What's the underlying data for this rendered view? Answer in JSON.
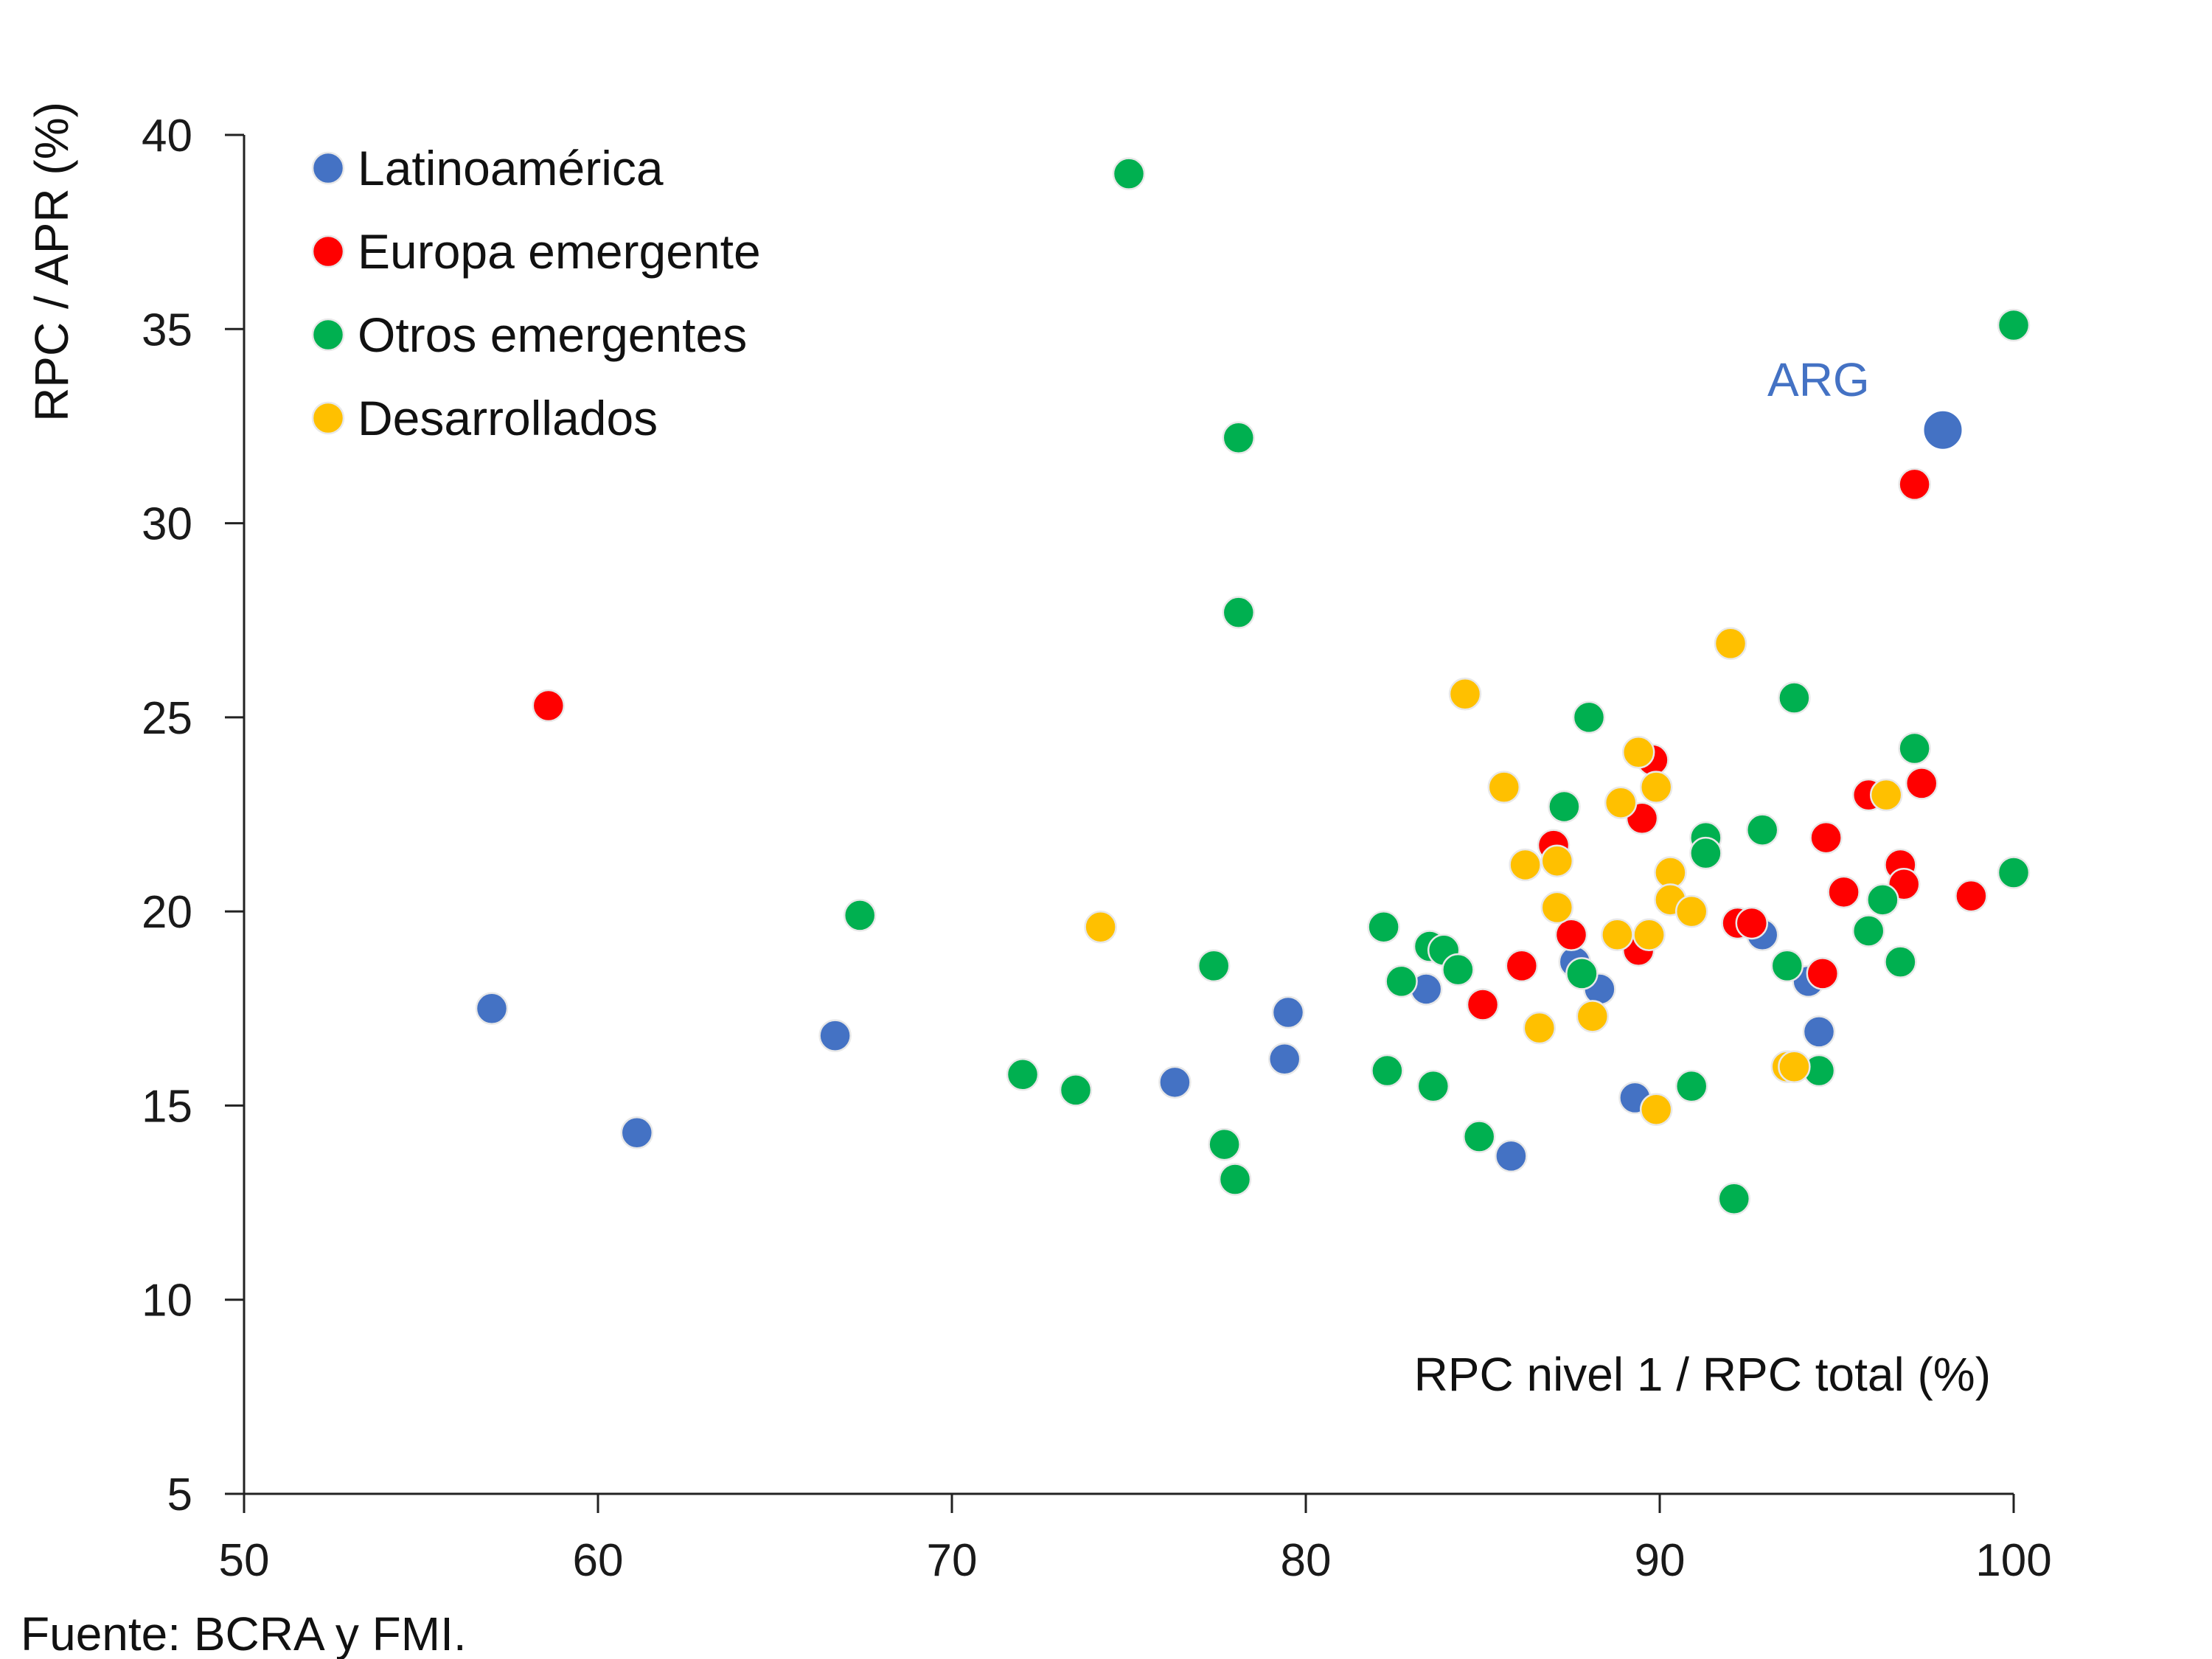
{
  "chart_data": {
    "type": "scatter",
    "ylabel": "RPC / APR (%)",
    "xlabel": "RPC nivel 1 / RPC total (%)",
    "xlim": [
      50,
      100
    ],
    "ylim": [
      5,
      40
    ],
    "xticks": [
      "50",
      "60",
      "70",
      "80",
      "90",
      "100"
    ],
    "yticks": [
      "5",
      "10",
      "15",
      "20",
      "25",
      "30",
      "35",
      "40"
    ],
    "grid": false,
    "legend_position": "top-left",
    "source": "Fuente: BCRA y FMI.",
    "series": [
      {
        "name": "Latinoamérica",
        "color": "#4472C4",
        "points": [
          [
            57.0,
            17.5
          ],
          [
            61.1,
            14.3
          ],
          [
            66.7,
            16.8
          ],
          [
            76.3,
            15.6
          ],
          [
            79.5,
            17.4
          ],
          [
            79.4,
            16.2
          ],
          [
            83.4,
            18.0
          ],
          [
            85.8,
            13.7
          ],
          [
            87.6,
            18.7
          ],
          [
            88.3,
            18.0
          ],
          [
            89.3,
            15.2
          ],
          [
            92.9,
            19.4
          ],
          [
            94.2,
            18.2
          ],
          [
            94.5,
            16.9
          ]
        ]
      },
      {
        "name": "Europa emergente",
        "color": "#FF0000",
        "points": [
          [
            58.6,
            25.3
          ],
          [
            85.0,
            17.6
          ],
          [
            86.1,
            18.6
          ],
          [
            87.0,
            21.7
          ],
          [
            87.5,
            19.4
          ],
          [
            89.4,
            19.0
          ],
          [
            89.5,
            22.4
          ],
          [
            89.8,
            23.9
          ],
          [
            92.2,
            19.7
          ],
          [
            92.6,
            19.7
          ],
          [
            94.6,
            18.4
          ],
          [
            94.7,
            21.9
          ],
          [
            95.2,
            20.5
          ],
          [
            95.9,
            23.0
          ],
          [
            96.8,
            21.2
          ],
          [
            96.9,
            20.7
          ],
          [
            97.2,
            31.0
          ],
          [
            97.4,
            23.3
          ],
          [
            98.8,
            20.4
          ]
        ]
      },
      {
        "name": "Otros emergentes",
        "color": "#00B050",
        "points": [
          [
            67.4,
            19.9
          ],
          [
            72.0,
            15.8
          ],
          [
            73.5,
            15.4
          ],
          [
            75.0,
            39.0
          ],
          [
            77.4,
            18.6
          ],
          [
            77.7,
            14.0
          ],
          [
            78.0,
            13.1
          ],
          [
            78.1,
            27.7
          ],
          [
            78.1,
            32.2
          ],
          [
            82.2,
            19.6
          ],
          [
            82.3,
            15.9
          ],
          [
            82.7,
            18.2
          ],
          [
            83.5,
            19.1
          ],
          [
            83.6,
            15.5
          ],
          [
            83.9,
            19.0
          ],
          [
            84.3,
            18.5
          ],
          [
            84.9,
            14.2
          ],
          [
            87.3,
            22.7
          ],
          [
            87.8,
            18.4
          ],
          [
            88.0,
            25.0
          ],
          [
            90.9,
            15.5
          ],
          [
            91.3,
            21.9
          ],
          [
            91.3,
            21.5
          ],
          [
            92.1,
            12.6
          ],
          [
            92.9,
            22.1
          ],
          [
            93.6,
            18.6
          ],
          [
            93.8,
            25.5
          ],
          [
            94.5,
            15.9
          ],
          [
            95.9,
            19.5
          ],
          [
            96.3,
            20.3
          ],
          [
            96.8,
            18.7
          ],
          [
            97.2,
            24.2
          ],
          [
            100.0,
            21.0
          ],
          [
            100.0,
            35.1
          ]
        ]
      },
      {
        "name": "Desarrollados",
        "color": "#FFC000",
        "points": [
          [
            74.2,
            19.6
          ],
          [
            84.5,
            25.6
          ],
          [
            85.6,
            23.2
          ],
          [
            86.2,
            21.2
          ],
          [
            86.6,
            17.0
          ],
          [
            87.1,
            21.3
          ],
          [
            87.1,
            20.1
          ],
          [
            88.1,
            17.3
          ],
          [
            88.8,
            19.4
          ],
          [
            88.9,
            22.8
          ],
          [
            89.4,
            24.1
          ],
          [
            89.7,
            19.4
          ],
          [
            89.9,
            23.2
          ],
          [
            89.9,
            14.9
          ],
          [
            90.3,
            21.0
          ],
          [
            90.3,
            20.3
          ],
          [
            90.9,
            20.0
          ],
          [
            92.0,
            26.9
          ],
          [
            93.6,
            16.0
          ],
          [
            93.8,
            16.0
          ],
          [
            96.4,
            23.0
          ]
        ]
      }
    ],
    "highlight": {
      "label": "ARG",
      "series": "Latinoamérica",
      "point": [
        98.0,
        32.4
      ],
      "color": "#4472C4"
    }
  }
}
